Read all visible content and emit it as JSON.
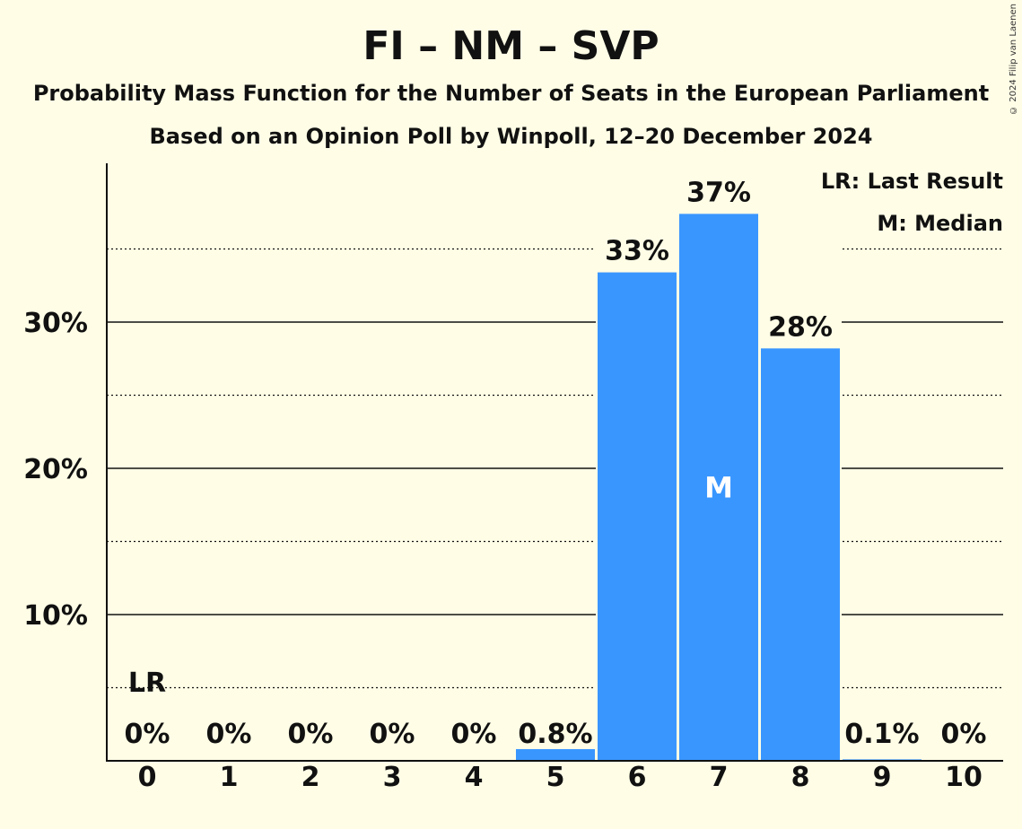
{
  "header": {
    "title": "FI – NM – SVP",
    "subtitle": "Probability Mass Function for the Number of Seats in the European Parliament",
    "poll_line": "Based on an Opinion Poll by Winpoll, 12–20 December 2024",
    "copyright": "© 2024 Filip van Laenen"
  },
  "legend": {
    "last_result": "LR: Last Result",
    "median": "M: Median"
  },
  "chart_data": {
    "type": "bar",
    "categories": [
      "0",
      "1",
      "2",
      "3",
      "4",
      "5",
      "6",
      "7",
      "8",
      "9",
      "10"
    ],
    "values": [
      0,
      0,
      0,
      0,
      0,
      0.8,
      33.4,
      37.4,
      28.2,
      0.1,
      0
    ],
    "data_labels": [
      "0%",
      "0%",
      "0%",
      "0%",
      "0%",
      "0.8%",
      "33%",
      "37%",
      "28%",
      "0.1%",
      "0%"
    ],
    "y_ticks": [
      10,
      20,
      30
    ],
    "y_tick_labels": [
      "10%",
      "20%",
      "30%"
    ],
    "y_minor_ticks": [
      5,
      15,
      25,
      35
    ],
    "ylim": [
      0,
      41
    ],
    "last_result_index": 0,
    "last_result_marker": "LR",
    "median_index": 7,
    "median_marker": "M",
    "bar_color": "#3A96FF",
    "background": "#FFFDE6",
    "legend_position": "top-right"
  }
}
